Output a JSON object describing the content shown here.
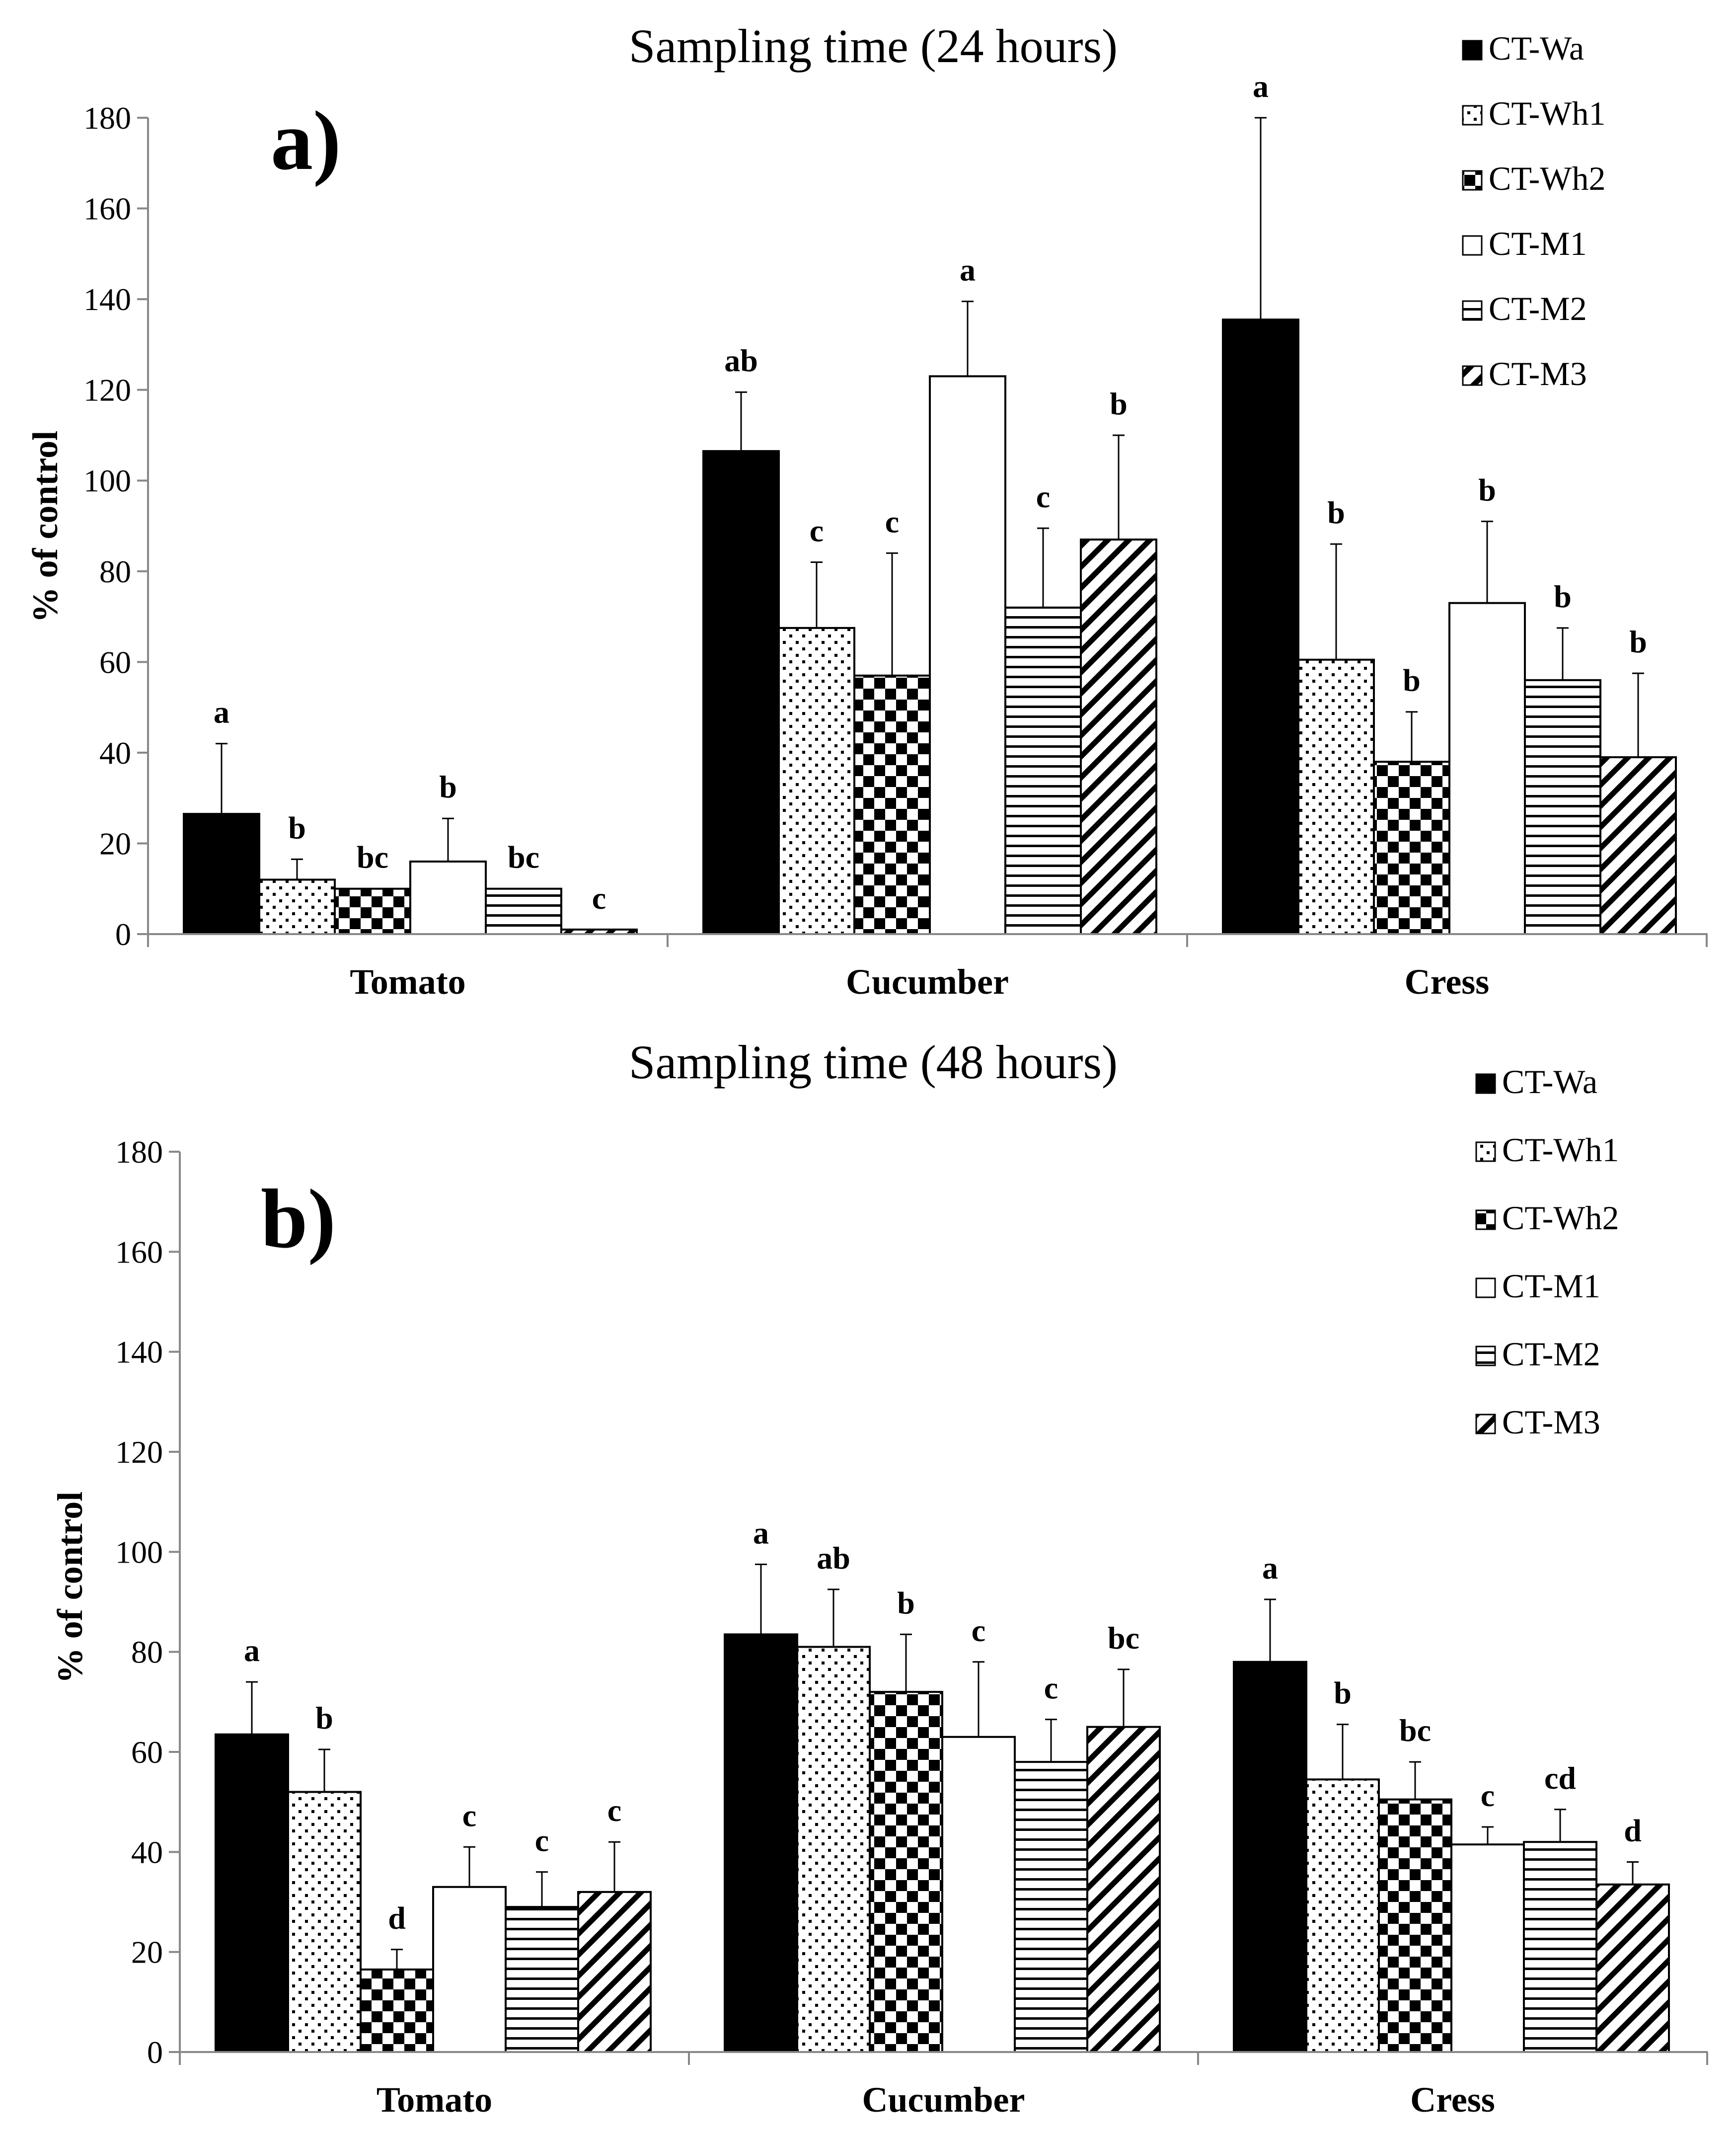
{
  "chart_data": [
    {
      "type": "bar",
      "panel_label": "a)",
      "title": "Sampling time (24 hours)",
      "xlabel": "",
      "ylabel": "% of control",
      "ylim": [
        0,
        180
      ],
      "yticks": [
        "0",
        "20",
        "40",
        "60",
        "80",
        "100",
        "120",
        "140",
        "160",
        "180"
      ],
      "categories": [
        "Tomato",
        "Cucumber",
        "Cress"
      ],
      "legend_position": "top-right",
      "series": [
        {
          "name": "CT-Wa",
          "pattern": "solid",
          "values": [
            26.5,
            106.5,
            135.5
          ],
          "errors": [
            15.5,
            13,
            44.5
          ],
          "letters": [
            "a",
            "ab",
            "a"
          ]
        },
        {
          "name": "CT-Wh1",
          "pattern": "dots",
          "values": [
            12,
            67.5,
            60.5
          ],
          "errors": [
            4.5,
            14.5,
            25.5
          ],
          "letters": [
            "b",
            "c",
            "b"
          ]
        },
        {
          "name": "CT-Wh2",
          "pattern": "checker",
          "values": [
            10,
            57,
            38
          ],
          "errors": [
            0,
            27,
            11
          ],
          "letters": [
            "bc",
            "c",
            "b"
          ]
        },
        {
          "name": "CT-M1",
          "pattern": "white",
          "values": [
            16,
            123,
            73
          ],
          "errors": [
            9.5,
            16.5,
            18
          ],
          "letters": [
            "b",
            "a",
            "b"
          ]
        },
        {
          "name": "CT-M2",
          "pattern": "hlines",
          "values": [
            10,
            72,
            56
          ],
          "errors": [
            0,
            17.5,
            11.5
          ],
          "letters": [
            "bc",
            "c",
            "b"
          ]
        },
        {
          "name": "CT-M3",
          "pattern": "diagonal",
          "values": [
            1,
            87,
            39
          ],
          "errors": [
            0,
            23,
            18.5
          ],
          "letters": [
            "c",
            "b",
            "b"
          ]
        }
      ]
    },
    {
      "type": "bar",
      "panel_label": "b)",
      "title": "Sampling time (48 hours)",
      "xlabel": "",
      "ylabel": "% of control",
      "ylim": [
        0,
        180
      ],
      "yticks": [
        "0",
        "20",
        "40",
        "60",
        "80",
        "100",
        "120",
        "140",
        "160",
        "180"
      ],
      "categories": [
        "Tomato",
        "Cucumber",
        "Cress"
      ],
      "legend_position": "top-right",
      "series": [
        {
          "name": "CT-Wa",
          "pattern": "solid",
          "values": [
            63.5,
            83.5,
            78
          ],
          "errors": [
            10.5,
            14,
            12.5
          ],
          "letters": [
            "a",
            "a",
            "a"
          ]
        },
        {
          "name": "CT-Wh1",
          "pattern": "dots",
          "values": [
            52,
            81,
            54.5
          ],
          "errors": [
            8.5,
            11.5,
            11
          ],
          "letters": [
            "b",
            "ab",
            "b"
          ]
        },
        {
          "name": "CT-Wh2",
          "pattern": "checker",
          "values": [
            16.5,
            72,
            50.5
          ],
          "errors": [
            4,
            11.5,
            7.5
          ],
          "letters": [
            "d",
            "b",
            "bc"
          ]
        },
        {
          "name": "CT-M1",
          "pattern": "white",
          "values": [
            33,
            63,
            41.5
          ],
          "errors": [
            8,
            15,
            3.5
          ],
          "letters": [
            "c",
            "c",
            "c"
          ]
        },
        {
          "name": "CT-M2",
          "pattern": "hlines",
          "values": [
            29,
            58,
            42
          ],
          "errors": [
            7,
            8.5,
            6.5
          ],
          "letters": [
            "c",
            "c",
            "cd"
          ]
        },
        {
          "name": "CT-M3",
          "pattern": "diagonal",
          "values": [
            32,
            65,
            33.5
          ],
          "errors": [
            10,
            11.5,
            4.5
          ],
          "letters": [
            "c",
            "bc",
            "d"
          ]
        }
      ]
    }
  ]
}
